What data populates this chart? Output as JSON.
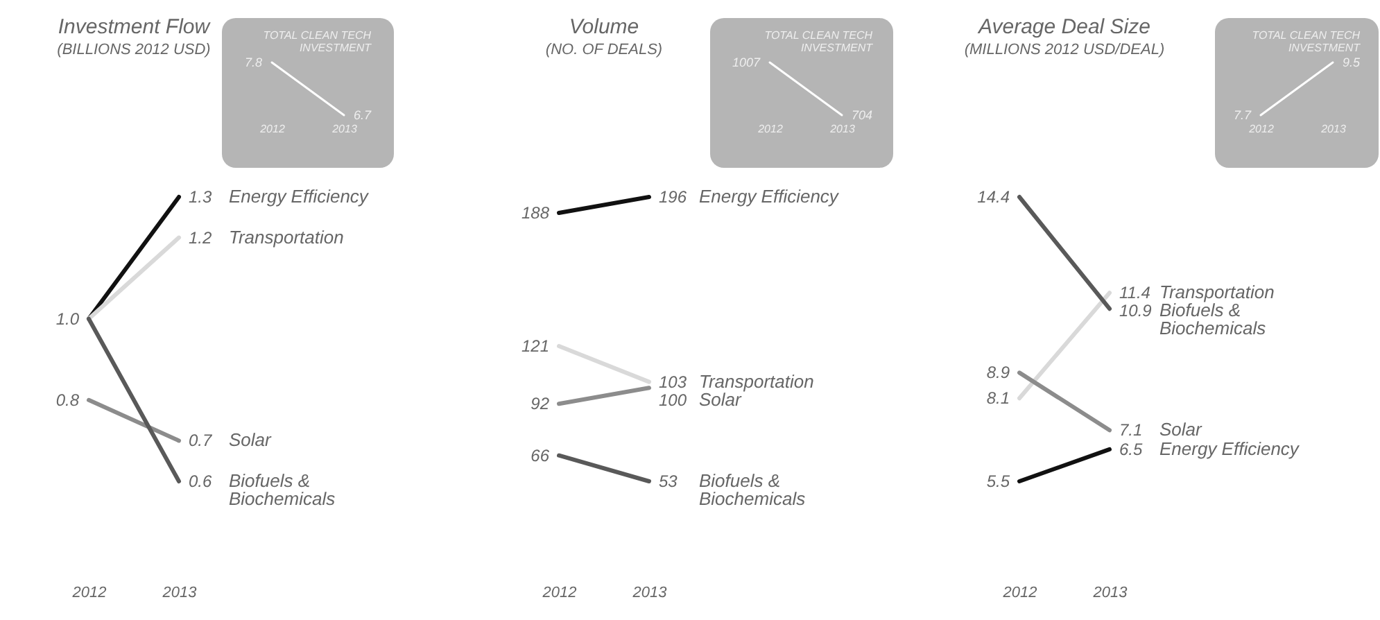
{
  "chart_data": [
    {
      "type": "line",
      "title": "Investment Flow",
      "subtitle": "(BILLIONS 2012 USD)",
      "categories": [
        "2012",
        "2013"
      ],
      "tick_labels": "x",
      "series": [
        {
          "name": "Energy Efficiency",
          "color": "#111111",
          "values": [
            1.0,
            1.3
          ],
          "value_labels": [
            "1.0",
            "1.3"
          ]
        },
        {
          "name": "Transportation",
          "color": "#d9d9d9",
          "values": [
            1.0,
            1.2
          ],
          "value_labels": [
            null,
            "1.2"
          ]
        },
        {
          "name": "Solar",
          "color": "#8c8c8c",
          "values": [
            0.8,
            0.7
          ],
          "value_labels": [
            "0.8",
            "0.7"
          ]
        },
        {
          "name": "Biofuels & Biochemicals",
          "color": "#595959",
          "values": [
            1.0,
            0.6
          ],
          "value_labels": [
            null,
            "0.6"
          ]
        }
      ]
    },
    {
      "type": "line",
      "title": "TOTAL CLEAN TECH INVESTMENT",
      "categories": [
        "2012",
        "2013"
      ],
      "series": [
        {
          "color": "#ffffff",
          "values": [
            7.8,
            6.7
          ],
          "value_labels": [
            "7.8",
            "6.7"
          ]
        }
      ]
    },
    {
      "type": "line",
      "title": "Volume",
      "subtitle": "(NO. OF DEALS)",
      "categories": [
        "2012",
        "2013"
      ],
      "tick_labels": "x",
      "series": [
        {
          "name": "Energy Efficiency",
          "color": "#111111",
          "values": [
            188,
            196
          ],
          "value_labels": [
            "188",
            "196"
          ]
        },
        {
          "name": "Transportation",
          "color": "#d9d9d9",
          "values": [
            121,
            103
          ],
          "value_labels": [
            "121",
            "103"
          ]
        },
        {
          "name": "Solar",
          "color": "#8c8c8c",
          "values": [
            92,
            100
          ],
          "value_labels": [
            "92",
            "100"
          ]
        },
        {
          "name": "Biofuels & Biochemicals",
          "color": "#595959",
          "values": [
            66,
            53
          ],
          "value_labels": [
            "66",
            "53"
          ]
        }
      ]
    },
    {
      "type": "line",
      "title": "TOTAL CLEAN TECH INVESTMENT",
      "categories": [
        "2012",
        "2013"
      ],
      "series": [
        {
          "color": "#ffffff",
          "values": [
            1007,
            704
          ],
          "value_labels": [
            "1007",
            "704"
          ]
        }
      ]
    },
    {
      "type": "line",
      "title": "Average Deal Size",
      "subtitle": "(MILLIONS 2012 USD/DEAL)",
      "categories": [
        "2012",
        "2013"
      ],
      "tick_labels": "x",
      "series": [
        {
          "name": "Energy Efficiency",
          "color": "#111111",
          "values": [
            5.5,
            6.5
          ],
          "value_labels": [
            "5.5",
            "6.5"
          ]
        },
        {
          "name": "Transportation",
          "color": "#d9d9d9",
          "values": [
            8.1,
            11.4
          ],
          "value_labels": [
            "8.1",
            "11.4"
          ]
        },
        {
          "name": "Solar",
          "color": "#8c8c8c",
          "values": [
            8.9,
            7.1
          ],
          "value_labels": [
            "8.9",
            "7.1"
          ]
        },
        {
          "name": "Biofuels & Biochemicals",
          "color": "#595959",
          "values": [
            14.4,
            10.9
          ],
          "value_labels": [
            "14.4",
            "10.9"
          ]
        }
      ]
    },
    {
      "type": "line",
      "title": "TOTAL CLEAN TECH INVESTMENT",
      "categories": [
        "2012",
        "2013"
      ],
      "series": [
        {
          "color": "#ffffff",
          "values": [
            7.7,
            9.5
          ],
          "value_labels": [
            "7.7",
            "9.5"
          ]
        }
      ]
    }
  ]
}
